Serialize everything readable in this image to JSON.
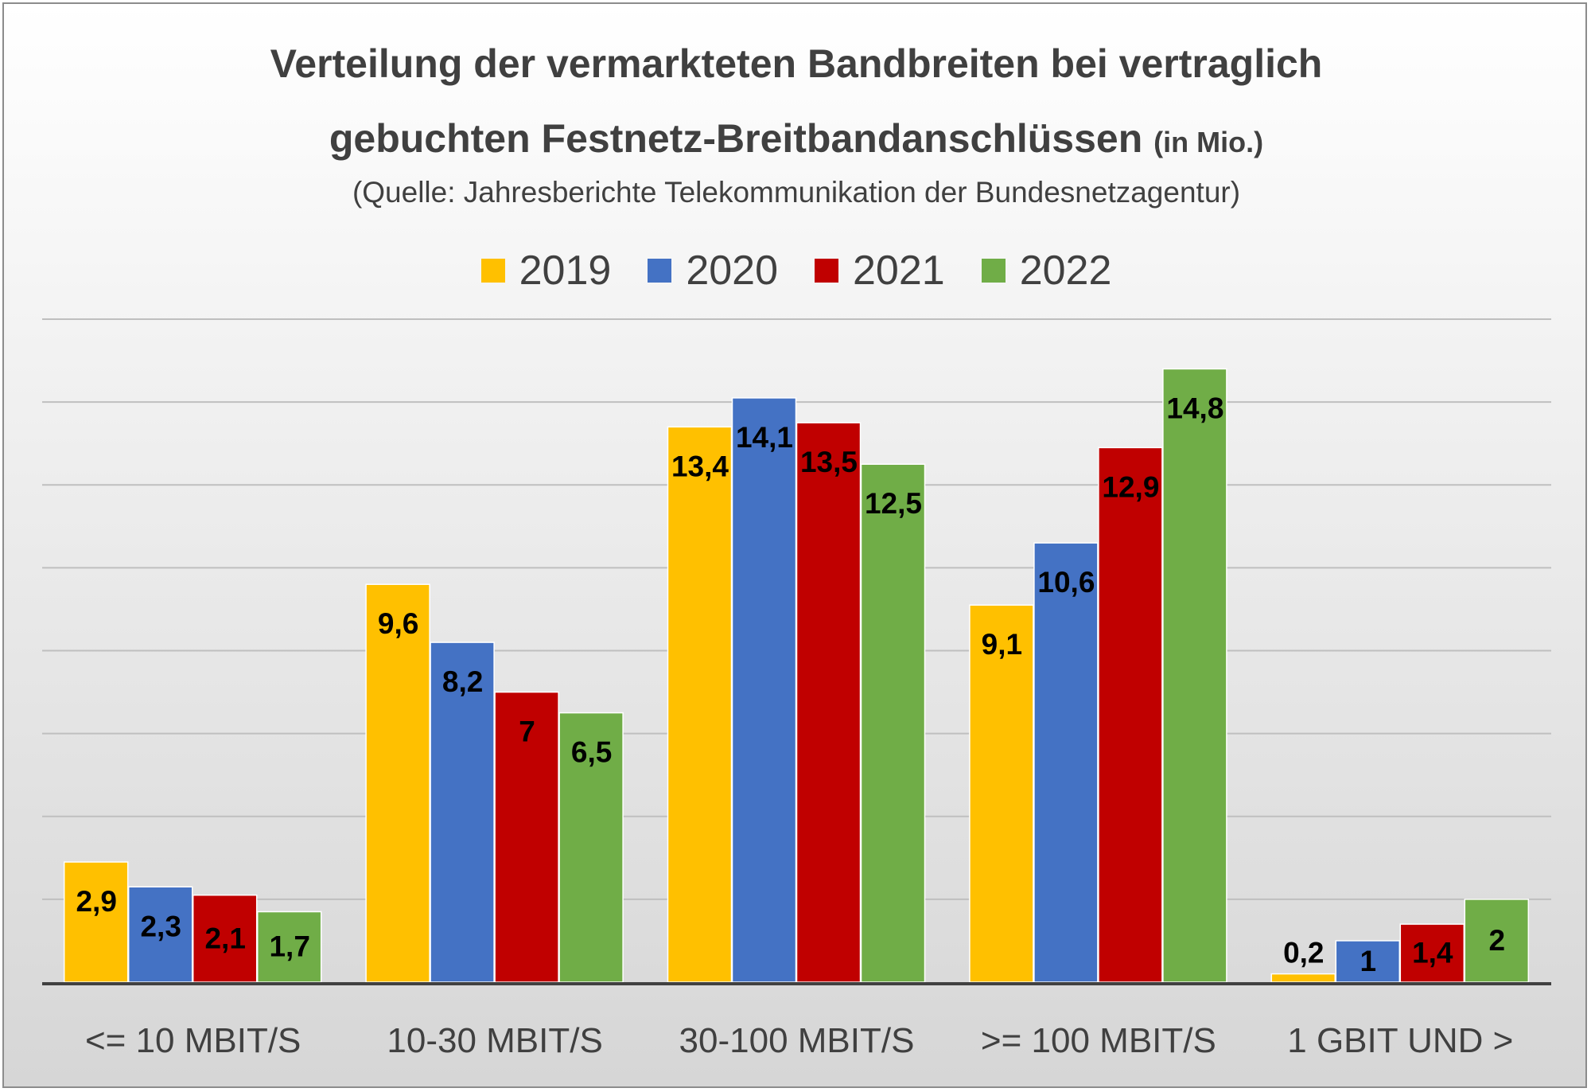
{
  "title_line1": "Verteilung der vermarkteten Bandbreiten bei vertraglich",
  "title_line2": "gebuchten Festnetz-Breitbandanschlüssen",
  "title_unit": "(in Mio.)",
  "subtitle": "(Quelle: Jahresberichte Telekommunikation der Bundesnetzagentur)",
  "chart_data": {
    "type": "bar",
    "title": "Verteilung der vermarkteten Bandbreiten bei vertraglich gebuchten Festnetz-Breitbandanschlüssen (in Mio.)",
    "subtitle": "(Quelle: Jahresberichte Telekommunikation der Bundesnetzagentur)",
    "categories": [
      "<= 10 MBIT/S",
      "10-30 MBIT/S",
      "30-100 MBIT/S",
      ">= 100 MBIT/S",
      "1 GBIT UND >"
    ],
    "series": [
      {
        "name": "2019",
        "color": "#ffc000",
        "values": [
          2.9,
          9.6,
          13.4,
          9.1,
          0.2
        ],
        "labels": [
          "2,9",
          "9,6",
          "13,4",
          "9,1",
          "0,2"
        ]
      },
      {
        "name": "2020",
        "color": "#4472c4",
        "values": [
          2.3,
          8.2,
          14.1,
          10.6,
          1
        ],
        "labels": [
          "2,3",
          "8,2",
          "14,1",
          "10,6",
          "1"
        ]
      },
      {
        "name": "2021",
        "color": "#c00000",
        "values": [
          2.1,
          7,
          13.5,
          12.9,
          1.4
        ],
        "labels": [
          "2,1",
          "7",
          "13,5",
          "12,9",
          "1,4"
        ]
      },
      {
        "name": "2022",
        "color": "#70ad47",
        "values": [
          1.7,
          6.5,
          12.5,
          14.8,
          2
        ],
        "labels": [
          "1,7",
          "6,5",
          "12,5",
          "14,8",
          "2"
        ]
      }
    ],
    "ylim": [
      0,
      16
    ],
    "grid": true,
    "legend": "top-center"
  }
}
